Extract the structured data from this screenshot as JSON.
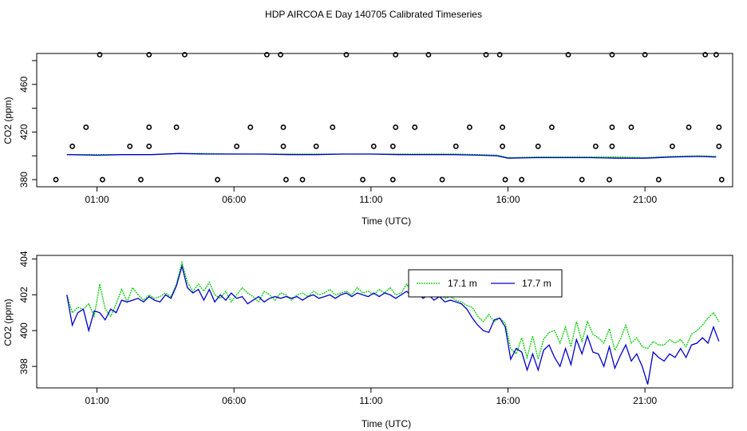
{
  "title": "HDP AIRCOA E  Day 140705  Calibrated Timeseries",
  "chart_data": [
    {
      "type": "line",
      "id": "top",
      "xlabel": "Time (UTC)",
      "ylabel": "CO2 (ppm)",
      "xlim": [
        -1.2,
        24.2
      ],
      "ylim": [
        374,
        486
      ],
      "x_ticks": [
        1,
        6,
        11,
        16,
        21
      ],
      "x_tick_labels": [
        "01:00",
        "06:00",
        "11:00",
        "16:00",
        "21:00"
      ],
      "y_ticks": [
        380,
        420,
        460
      ],
      "y_tick_labels": [
        "380",
        "420",
        "460"
      ],
      "y_minor_ticks": [
        400,
        440,
        480
      ],
      "series": [
        {
          "color": "#00cc00",
          "x": [
            -0.1,
            1,
            2,
            3,
            4,
            5,
            6,
            7,
            8,
            9,
            10,
            11,
            12,
            13,
            14,
            15,
            15.6,
            16,
            17,
            18,
            19,
            20,
            21,
            22,
            23,
            23.6
          ],
          "values": [
            401,
            401,
            401,
            401,
            402,
            402,
            401.5,
            401.5,
            401.5,
            401.5,
            401.5,
            401.5,
            401.5,
            401.5,
            401.5,
            401,
            400.5,
            398.5,
            399,
            399,
            399,
            399,
            398.5,
            399.5,
            400,
            399.5
          ]
        },
        {
          "color": "#0000cc",
          "x": [
            -0.1,
            1,
            2,
            3,
            4,
            5,
            6,
            7,
            8,
            9,
            10,
            11,
            12,
            13,
            14,
            15,
            15.6,
            16,
            17,
            18,
            19,
            20,
            21,
            22,
            23,
            23.6
          ],
          "values": [
            401,
            400.5,
            401,
            401,
            402,
            401.5,
            401.5,
            401.5,
            401,
            401,
            401.5,
            401.5,
            401,
            401,
            401,
            400.5,
            400,
            398,
            398.5,
            398.5,
            398.5,
            398,
            398,
            399,
            399.5,
            399
          ]
        }
      ],
      "markers": {
        "symbol": "open-circle",
        "points": [
          [
            -0.5,
            380
          ],
          [
            0.1,
            408
          ],
          [
            0.6,
            424
          ],
          [
            1.1,
            485
          ],
          [
            1.2,
            380
          ],
          [
            2.2,
            408
          ],
          [
            2.6,
            380
          ],
          [
            2.9,
            424
          ],
          [
            2.9,
            408
          ],
          [
            2.9,
            485
          ],
          [
            3.9,
            424
          ],
          [
            4.2,
            485
          ],
          [
            5.4,
            380
          ],
          [
            6.1,
            408
          ],
          [
            6.6,
            424
          ],
          [
            7.2,
            485
          ],
          [
            7.7,
            485
          ],
          [
            7.8,
            424
          ],
          [
            7.8,
            408
          ],
          [
            7.9,
            380
          ],
          [
            8.5,
            380
          ],
          [
            9.0,
            408
          ],
          [
            9.6,
            424
          ],
          [
            10.1,
            485
          ],
          [
            10.7,
            380
          ],
          [
            11.1,
            408
          ],
          [
            11.8,
            380
          ],
          [
            11.8,
            408
          ],
          [
            11.9,
            424
          ],
          [
            11.9,
            485
          ],
          [
            12.6,
            424
          ],
          [
            13.1,
            485
          ],
          [
            13.6,
            380
          ],
          [
            14.1,
            408
          ],
          [
            14.6,
            424
          ],
          [
            15.2,
            485
          ],
          [
            15.7,
            485
          ],
          [
            15.8,
            424
          ],
          [
            15.8,
            408
          ],
          [
            15.9,
            380
          ],
          [
            16.5,
            380
          ],
          [
            17.1,
            408
          ],
          [
            17.6,
            424
          ],
          [
            18.2,
            485
          ],
          [
            18.7,
            380
          ],
          [
            19.2,
            408
          ],
          [
            19.7,
            380
          ],
          [
            19.8,
            408
          ],
          [
            19.8,
            424
          ],
          [
            19.8,
            485
          ],
          [
            20.5,
            424
          ],
          [
            21.0,
            485
          ],
          [
            21.5,
            380
          ],
          [
            22.0,
            408
          ],
          [
            22.6,
            424
          ],
          [
            23.2,
            485
          ],
          [
            23.6,
            485
          ],
          [
            23.7,
            424
          ],
          [
            23.7,
            408
          ],
          [
            23.8,
            380
          ]
        ]
      }
    },
    {
      "type": "line",
      "id": "bottom",
      "xlabel": "Time (UTC)",
      "ylabel": "CO2 (ppm)",
      "xlim": [
        -1.2,
        24.2
      ],
      "ylim": [
        396.8,
        404.2
      ],
      "x_ticks": [
        1,
        6,
        11,
        16,
        21
      ],
      "x_tick_labels": [
        "01:00",
        "06:00",
        "11:00",
        "16:00",
        "21:00"
      ],
      "y_ticks": [
        398,
        400,
        402,
        404
      ],
      "y_tick_labels": [
        "398",
        "400",
        "402",
        "404"
      ],
      "legend_position": "top-right",
      "series": [
        {
          "name": "17.1 m",
          "color": "#00cc00",
          "x": [
            -0.1,
            0.1,
            0.3,
            0.5,
            0.7,
            0.9,
            1.1,
            1.3,
            1.5,
            1.7,
            1.9,
            2.1,
            2.3,
            2.5,
            2.7,
            2.9,
            3.1,
            3.3,
            3.5,
            3.7,
            3.9,
            4.1,
            4.3,
            4.5,
            4.7,
            4.9,
            5.1,
            5.3,
            5.5,
            5.7,
            5.9,
            6.1,
            6.3,
            6.5,
            6.7,
            6.9,
            7.1,
            7.3,
            7.5,
            7.7,
            7.9,
            8.1,
            8.3,
            8.5,
            8.7,
            8.9,
            9.1,
            9.3,
            9.5,
            9.7,
            9.9,
            10.1,
            10.3,
            10.5,
            10.7,
            10.9,
            11.1,
            11.3,
            11.5,
            11.7,
            11.9,
            12.1,
            12.3,
            12.5,
            12.7,
            12.9,
            13.1,
            13.3,
            13.5,
            13.7,
            13.9,
            14.1,
            14.3,
            14.5,
            14.7,
            14.9,
            15.1,
            15.3,
            15.5,
            15.7,
            15.9,
            16.1,
            16.3,
            16.5,
            16.7,
            16.9,
            17.1,
            17.3,
            17.5,
            17.7,
            17.9,
            18.1,
            18.3,
            18.5,
            18.7,
            18.9,
            19.1,
            19.3,
            19.5,
            19.7,
            19.9,
            20.1,
            20.3,
            20.5,
            20.7,
            20.9,
            21.1,
            21.3,
            21.5,
            21.7,
            21.9,
            22.1,
            22.3,
            22.5,
            22.7,
            22.9,
            23.1,
            23.3,
            23.5,
            23.7
          ],
          "values": [
            402.0,
            401.0,
            401.3,
            401.2,
            401.5,
            400.8,
            402.6,
            401.2,
            400.8,
            401.5,
            402.3,
            401.6,
            402.4,
            402.0,
            401.7,
            402.0,
            401.8,
            401.9,
            402.1,
            401.9,
            402.6,
            403.8,
            402.7,
            402.2,
            402.6,
            402.2,
            402.7,
            402.0,
            401.8,
            402.2,
            401.6,
            402.0,
            402.4,
            402.1,
            401.9,
            401.6,
            402.2,
            402.0,
            401.7,
            402.1,
            402.0,
            401.7,
            402.0,
            402.1,
            401.9,
            402.2,
            402.0,
            402.1,
            402.3,
            402.0,
            402.1,
            402.2,
            402.0,
            402.4,
            402.1,
            402.2,
            402.0,
            402.3,
            402.1,
            402.4,
            402.0,
            402.1,
            402.6,
            402.1,
            402.3,
            402.0,
            402.4,
            402.0,
            402.1,
            401.8,
            401.9,
            401.7,
            401.6,
            401.4,
            401.3,
            400.8,
            400.5,
            400.9,
            400.5,
            400.7,
            400.4,
            399.0,
            398.7,
            399.6,
            398.5,
            399.7,
            398.4,
            399.5,
            399.9,
            400.0,
            399.3,
            400.2,
            399.1,
            400.5,
            399.4,
            400.5,
            399.8,
            399.6,
            399.3,
            400.1,
            398.9,
            399.5,
            400.3,
            399.3,
            399.6,
            399.1,
            399.0,
            399.4,
            399.2,
            399.2,
            399.5,
            399.3,
            399.5,
            399.1,
            399.8,
            400.0,
            400.3,
            400.7,
            401.0,
            400.5
          ]
        },
        {
          "name": "17.7 m",
          "color": "#0000cc",
          "x": [
            -0.1,
            0.1,
            0.3,
            0.5,
            0.7,
            0.9,
            1.1,
            1.3,
            1.5,
            1.7,
            1.9,
            2.1,
            2.3,
            2.5,
            2.7,
            2.9,
            3.1,
            3.3,
            3.5,
            3.7,
            3.9,
            4.1,
            4.3,
            4.5,
            4.7,
            4.9,
            5.1,
            5.3,
            5.5,
            5.7,
            5.9,
            6.1,
            6.3,
            6.5,
            6.7,
            6.9,
            7.1,
            7.3,
            7.5,
            7.7,
            7.9,
            8.1,
            8.3,
            8.5,
            8.7,
            8.9,
            9.1,
            9.3,
            9.5,
            9.7,
            9.9,
            10.1,
            10.3,
            10.5,
            10.7,
            10.9,
            11.1,
            11.3,
            11.5,
            11.7,
            11.9,
            12.1,
            12.3,
            12.5,
            12.7,
            12.9,
            13.1,
            13.3,
            13.5,
            13.7,
            13.9,
            14.1,
            14.3,
            14.5,
            14.7,
            14.9,
            15.1,
            15.3,
            15.5,
            15.7,
            15.9,
            16.1,
            16.3,
            16.5,
            16.7,
            16.9,
            17.1,
            17.3,
            17.5,
            17.7,
            17.9,
            18.1,
            18.3,
            18.5,
            18.7,
            18.9,
            19.1,
            19.3,
            19.5,
            19.7,
            19.9,
            20.1,
            20.3,
            20.5,
            20.7,
            20.9,
            21.1,
            21.3,
            21.5,
            21.7,
            21.9,
            22.1,
            22.3,
            22.5,
            22.7,
            22.9,
            23.1,
            23.3,
            23.5,
            23.7
          ],
          "values": [
            402.0,
            400.3,
            401.0,
            401.2,
            400.0,
            401.1,
            401.0,
            400.6,
            401.2,
            401.0,
            401.7,
            401.6,
            401.7,
            401.8,
            401.6,
            401.9,
            401.7,
            401.6,
            402.0,
            401.8,
            402.5,
            403.6,
            402.4,
            402.1,
            402.3,
            401.7,
            402.3,
            401.6,
            402.0,
            401.7,
            402.1,
            401.8,
            401.9,
            401.5,
            401.7,
            401.9,
            401.6,
            401.8,
            401.9,
            401.8,
            401.9,
            401.8,
            401.9,
            401.7,
            401.9,
            402.0,
            401.8,
            401.9,
            402.0,
            401.8,
            402.0,
            402.1,
            401.9,
            402.1,
            402.0,
            401.9,
            402.1,
            401.9,
            402.1,
            402.0,
            401.8,
            402.0,
            402.2,
            401.9,
            402.1,
            401.8,
            402.0,
            401.7,
            401.9,
            401.6,
            401.7,
            401.6,
            401.5,
            401.2,
            400.7,
            400.3,
            400.0,
            399.9,
            400.6,
            400.7,
            400.2,
            398.4,
            399.0,
            398.8,
            397.8,
            398.7,
            397.8,
            398.9,
            399.2,
            398.5,
            398.0,
            399.0,
            398.1,
            399.5,
            398.7,
            399.7,
            398.8,
            398.7,
            398.0,
            399.1,
            397.9,
            398.6,
            399.2,
            398.3,
            398.7,
            398.0,
            397.0,
            398.8,
            398.5,
            398.3,
            398.7,
            398.5,
            399.0,
            398.5,
            399.2,
            399.3,
            399.6,
            399.3,
            400.2,
            399.4
          ]
        }
      ]
    }
  ]
}
